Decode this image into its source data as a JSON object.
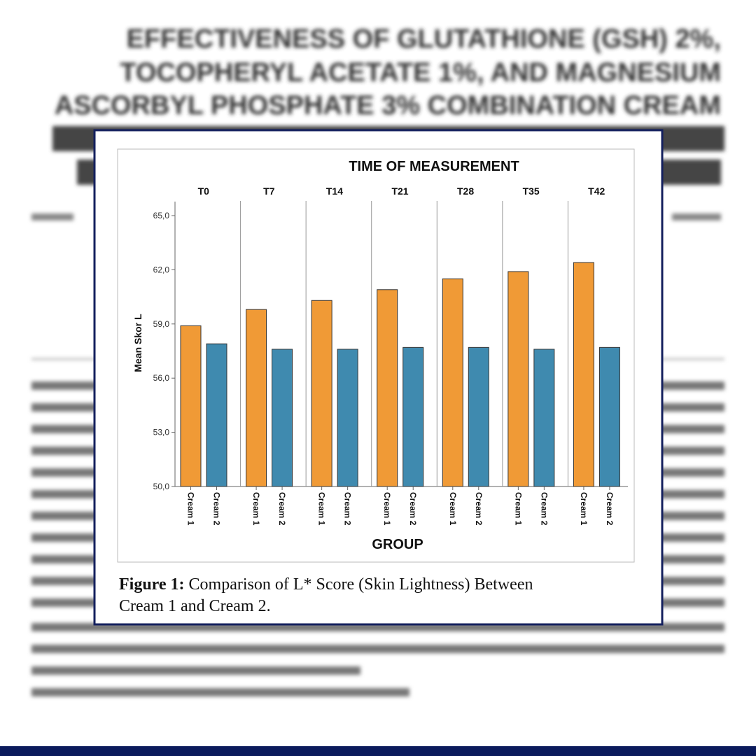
{
  "background_title": [
    "EFFECTIVENESS OF GLUTATHIONE (GSH) 2%,",
    "TOCOPHERYL ACETATE 1%, AND MAGNESIUM",
    "ASCORBYL PHOSPHATE 3% COMBINATION CREAM"
  ],
  "chart_data": {
    "type": "bar",
    "title": "TIME OF MEASUREMENT",
    "categories": [
      "T0",
      "T7",
      "T14",
      "T21",
      "T28",
      "T35",
      "T42"
    ],
    "series": [
      {
        "name": "Cream 1",
        "color": "#f09a36",
        "values": [
          58.9,
          59.8,
          60.3,
          60.9,
          61.5,
          61.9,
          62.4
        ]
      },
      {
        "name": "Cream 2",
        "color": "#3f8aaf",
        "values": [
          57.9,
          57.6,
          57.6,
          57.7,
          57.7,
          57.6,
          57.7
        ]
      }
    ],
    "xlabel": "GROUP",
    "ylabel": "Mean Skor L",
    "ylim": [
      50,
      65
    ],
    "yticks": [
      {
        "value": 50,
        "label": "50,0"
      },
      {
        "value": 53,
        "label": "53,0"
      },
      {
        "value": 56,
        "label": "56,0"
      },
      {
        "value": 59,
        "label": "59,0"
      },
      {
        "value": 62,
        "label": "62,0"
      },
      {
        "value": 65,
        "label": "65,0"
      }
    ]
  },
  "caption": {
    "label": "Figure 1:",
    "text": "Comparison of L* Score (Skin Lightness) Between Cream 1 and Cream 2."
  }
}
